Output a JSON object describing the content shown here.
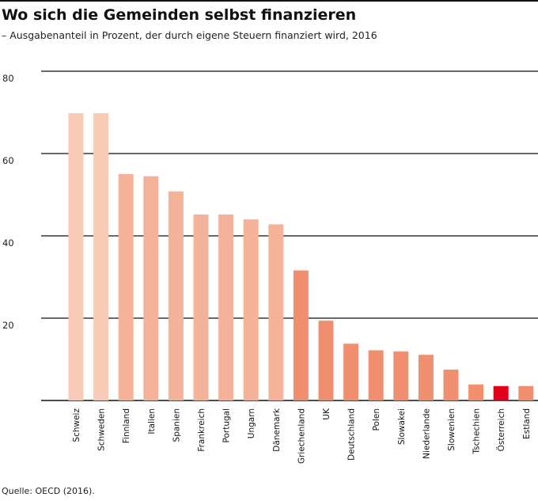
{
  "chart_data": {
    "type": "bar",
    "title": "Wo sich die Gemeinden selbst finanzieren",
    "subtitle": "– Ausgabenanteil in Prozent, der durch eigene Steuern finanziert wird, 2016",
    "source": "Quelle: OECD (2016).",
    "xlabel": "",
    "ylabel": "",
    "ylim": [
      0,
      80
    ],
    "yticks": [
      20,
      40,
      60,
      80
    ],
    "grid": true,
    "legend": "none",
    "categories": [
      "Schweiz",
      "Schweden",
      "Finnland",
      "Italien",
      "Spanien",
      "Frankreich",
      "Portugal",
      "Ungarn",
      "Dänemark",
      "Griechenland",
      "UK",
      "Deutschland",
      "Polen",
      "Slowakei",
      "Niederlande",
      "Slowenien",
      "Tschechien",
      "Österreich",
      "Estland"
    ],
    "values": [
      69.8,
      69.8,
      55.0,
      54.5,
      50.8,
      45.2,
      45.2,
      44.0,
      42.8,
      31.6,
      19.4,
      13.8,
      12.2,
      11.9,
      11.1,
      7.5,
      3.9,
      3.5,
      3.5
    ],
    "colors": [
      "#f8c9b7",
      "#f8c9b7",
      "#f4b398",
      "#f4b398",
      "#f4b398",
      "#f4b398",
      "#f4b398",
      "#f4b398",
      "#f4b398",
      "#ef8f70",
      "#ef8f70",
      "#ef8f70",
      "#ef8f70",
      "#ef8f70",
      "#ef8f70",
      "#ef8f70",
      "#ef8f70",
      "#e3001b",
      "#ef8f70"
    ],
    "axis_color": "#111111"
  }
}
